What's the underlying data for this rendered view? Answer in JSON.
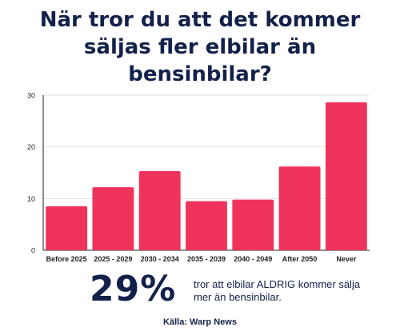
{
  "title_lines": [
    "När tror du att det kommer",
    "säljas fler elbilar än",
    "bensinbilar?"
  ],
  "highlight": {
    "value": "29%",
    "text": "tror att elbilar ALDRIG kommer sälja mer än bensinbilar."
  },
  "source": "Källa: Warp News",
  "colors": {
    "bar": "#f0335c",
    "text": "#13214a",
    "grid": "#e2e2e2",
    "axis": "#222222"
  },
  "chart_data": {
    "type": "bar",
    "title": "När tror du att det kommer säljas fler elbilar än bensinbilar?",
    "categories": [
      "Before 2025",
      "2025 - 2029",
      "2030 - 2034",
      "2035 - 2039",
      "2040 - 2049",
      "After 2050",
      "Never"
    ],
    "values": [
      8.5,
      12.2,
      15.3,
      9.5,
      9.8,
      16.2,
      28.6
    ],
    "yticks": [
      0,
      10,
      20,
      30
    ],
    "ylim": [
      0,
      30
    ],
    "xlabel": "",
    "ylabel": "",
    "grid": true
  }
}
